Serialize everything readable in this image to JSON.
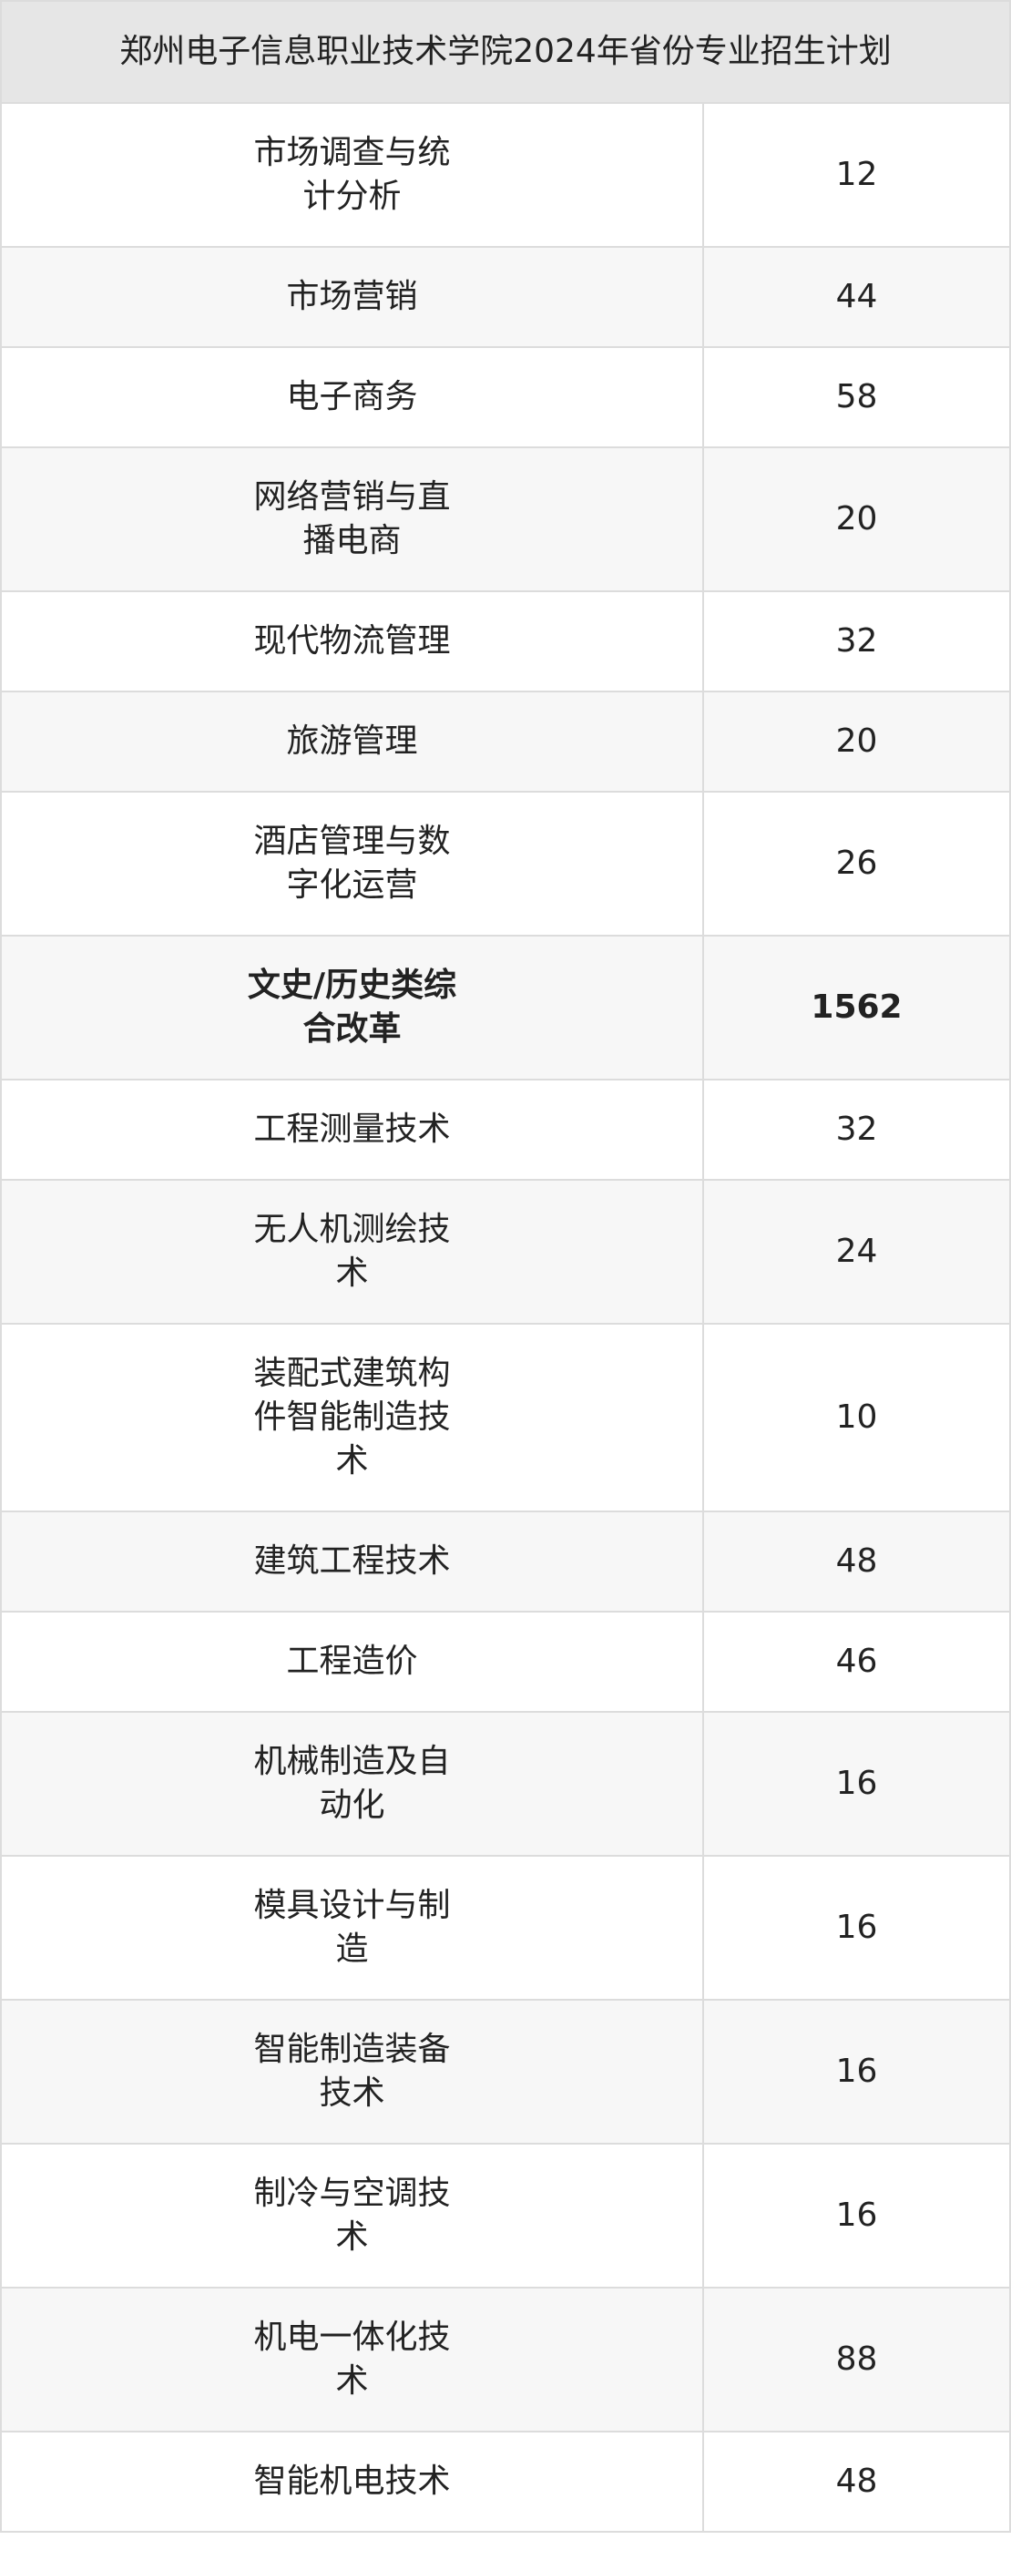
{
  "title": "郑州电子信息职业技术学院2024年省份专业招生计划",
  "rows": [
    {
      "major": "市场调查与统计分析",
      "count": "12"
    },
    {
      "major": "市场营销",
      "count": "44"
    },
    {
      "major": "电子商务",
      "count": "58"
    },
    {
      "major": "网络营销与直播电商",
      "count": "20"
    },
    {
      "major": "现代物流管理",
      "count": "32"
    },
    {
      "major": "旅游管理",
      "count": "20"
    },
    {
      "major": "酒店管理与数字化运营",
      "count": "26"
    },
    {
      "major": "文史/历史类综合改革",
      "count": "1562",
      "bold": true
    },
    {
      "major": "工程测量技术",
      "count": "32"
    },
    {
      "major": "无人机测绘技术",
      "count": "24"
    },
    {
      "major": "装配式建筑构件智能制造技术",
      "count": "10"
    },
    {
      "major": "建筑工程技术",
      "count": "48"
    },
    {
      "major": "工程造价",
      "count": "46"
    },
    {
      "major": "机械制造及自动化",
      "count": "16"
    },
    {
      "major": "模具设计与制造",
      "count": "16"
    },
    {
      "major": "智能制造装备技术",
      "count": "16"
    },
    {
      "major": "制冷与空调技术",
      "count": "16"
    },
    {
      "major": "机电一体化技术",
      "count": "88"
    },
    {
      "major": "智能机电技术",
      "count": "48"
    }
  ]
}
